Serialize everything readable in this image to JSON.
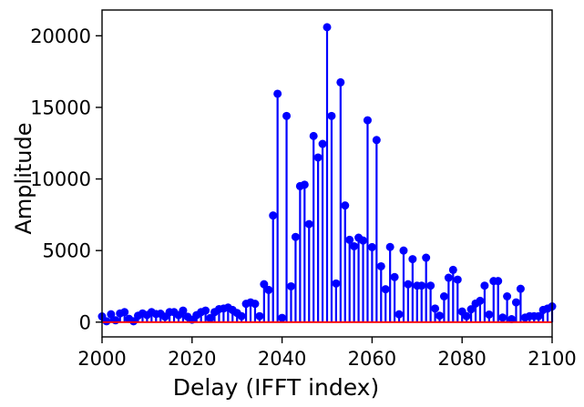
{
  "chart_data": {
    "type": "stem",
    "title": "",
    "xlabel": "Delay (IFFT index)",
    "ylabel": "Amplitude",
    "xlim": [
      2000,
      2100
    ],
    "ylim": [
      -1030,
      21800
    ],
    "x_ticks": [
      2000,
      2020,
      2040,
      2060,
      2080,
      2100
    ],
    "y_ticks": [
      0,
      5000,
      10000,
      15000,
      20000
    ],
    "grid": false,
    "legend": null,
    "stem_color": "#0000ff",
    "marker_color": "#0000ff",
    "baseline_color": "#ff0000",
    "frame_color": "#000000",
    "x_start": 2000,
    "x_step": 1,
    "values": [
      400,
      60,
      550,
      130,
      610,
      700,
      230,
      60,
      450,
      610,
      500,
      700,
      570,
      590,
      380,
      700,
      700,
      490,
      810,
      380,
      170,
      490,
      700,
      810,
      280,
      700,
      910,
      950,
      1020,
      850,
      640,
      420,
      1280,
      1380,
      1280,
      420,
      2650,
      2250,
      7450,
      15950,
      300,
      14400,
      2500,
      5950,
      9500,
      9600,
      6850,
      13000,
      11500,
      12450,
      20600,
      14400,
      2700,
      16750,
      8150,
      5750,
      5300,
      5900,
      5700,
      14100,
      5240,
      12720,
      3900,
      2300,
      5250,
      3150,
      550,
      5000,
      2650,
      4400,
      2550,
      2550,
      4500,
      2550,
      950,
      450,
      1800,
      3100,
      3650,
      2970,
      740,
      420,
      900,
      1300,
      1490,
      2550,
      530,
      2870,
      2870,
      320,
      1800,
      210,
      1380,
      2330,
      320,
      420,
      420,
      420,
      850,
      950,
      1100
    ],
    "peak": {
      "x": 2050,
      "value": 20600
    }
  }
}
